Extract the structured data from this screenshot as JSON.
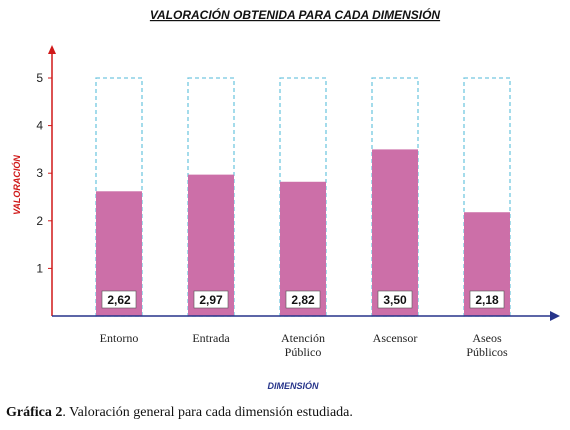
{
  "chart_data": {
    "type": "bar",
    "title": "VALORACIÓN OBTENIDA PARA CADA DIMENSIÓN",
    "xlabel": "DIMENSIÓN",
    "ylabel": "VALORACIÓN",
    "categories": [
      [
        "Entorno"
      ],
      [
        "Entrada"
      ],
      [
        "Atención",
        "Público"
      ],
      [
        "Ascensor"
      ],
      [
        "Aseos",
        "Públicos"
      ]
    ],
    "values": [
      2.62,
      2.97,
      2.82,
      3.5,
      2.18
    ],
    "value_labels": [
      "2,62",
      "2,97",
      "2,82",
      "3,50",
      "2,18"
    ],
    "max_value": 5,
    "ylim": [
      0,
      5
    ],
    "yticks": [
      1,
      2,
      3,
      4,
      5
    ],
    "grid": false,
    "colors": {
      "bar": "#cc6fa8",
      "max_outline": "#74c8e0",
      "y_axis": "#d01818",
      "x_axis": "#26348a",
      "xlabel": "#26348a",
      "ylabel": "#d01818"
    }
  },
  "caption": {
    "label": "Gráfica 2",
    "text": ". Valoración general para cada dimensión estudiada."
  }
}
